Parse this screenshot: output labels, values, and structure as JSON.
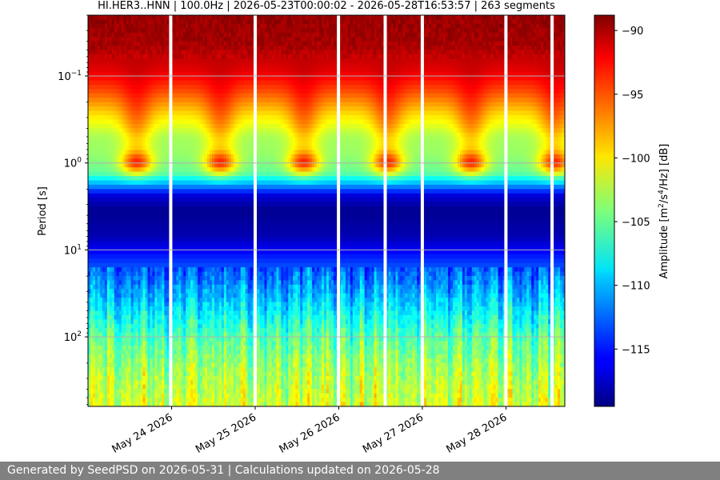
{
  "chart_data": {
    "type": "heatmap",
    "title": "HI.HER3..HNN | 100.0Hz | 2026-05-23T00:00:02 - 2026-05-28T16:53:57 | 263 segments",
    "ylabel": "Period [s]",
    "colorbar_label_parts": [
      "Amplitude [m",
      "2",
      "/s",
      "4",
      "/Hz] [dB]"
    ],
    "colormap": "jet",
    "x": {
      "scale": "time",
      "start": "2026-05-23T00:00:02",
      "end": "2026-05-28T16:53:57",
      "tick_dates": [
        "2026-05-24",
        "2026-05-25",
        "2026-05-26",
        "2026-05-27",
        "2026-05-28"
      ],
      "tick_labels": [
        "May 24 2026",
        "May 25 2026",
        "May 26 2026",
        "May 27 2026",
        "May 28 2026"
      ]
    },
    "y": {
      "scale": "log",
      "inverted": true,
      "range": [
        0.02,
        630
      ],
      "ticks": [
        0.1,
        1,
        10,
        100
      ],
      "tick_labels": [
        {
          "base": "10",
          "exp": "−1"
        },
        {
          "base": "10",
          "exp": "0"
        },
        {
          "base": "10",
          "exp": "1"
        },
        {
          "base": "10",
          "exp": "2"
        }
      ]
    },
    "color_range": [
      -119.5,
      -88.8
    ],
    "colorbar_ticks": [
      -90,
      -95,
      -100,
      -105,
      -110,
      -115
    ],
    "gaps": [
      "2026-05-23T23:45:00",
      "2026-05-25T00:00:00",
      "2026-05-25T23:55:00",
      "2026-05-26T13:20:00",
      "2026-05-27T00:00:00",
      "2026-05-28T00:00:00",
      "2026-05-28T13:15:00"
    ],
    "spectrum_profile_db": [
      {
        "period": 0.02,
        "db": -89.5
      },
      {
        "period": 0.045,
        "db": -90.0
      },
      {
        "period": 0.09,
        "db": -92.0
      },
      {
        "period": 0.15,
        "db": -95.0
      },
      {
        "period": 0.28,
        "db": -99.5
      },
      {
        "period": 0.5,
        "db": -103.0
      },
      {
        "period": 0.8,
        "db": -103.5
      },
      {
        "period": 1.3,
        "db": -105.0
      },
      {
        "period": 1.9,
        "db": -112.0
      },
      {
        "period": 2.4,
        "db": -117.0
      },
      {
        "period": 3.5,
        "db": -119.0
      },
      {
        "period": 7,
        "db": -118.0
      },
      {
        "period": 15,
        "db": -113.5
      },
      {
        "period": 40,
        "db": -109.5
      },
      {
        "period": 100,
        "db": -105.5
      },
      {
        "period": 250,
        "db": -103.0
      },
      {
        "period": 630,
        "db": -101.5
      }
    ],
    "grid": true
  },
  "footer": {
    "text": "Generated by SeedPSD on 2026-05-31 | Calculations updated on 2026-05-28"
  }
}
